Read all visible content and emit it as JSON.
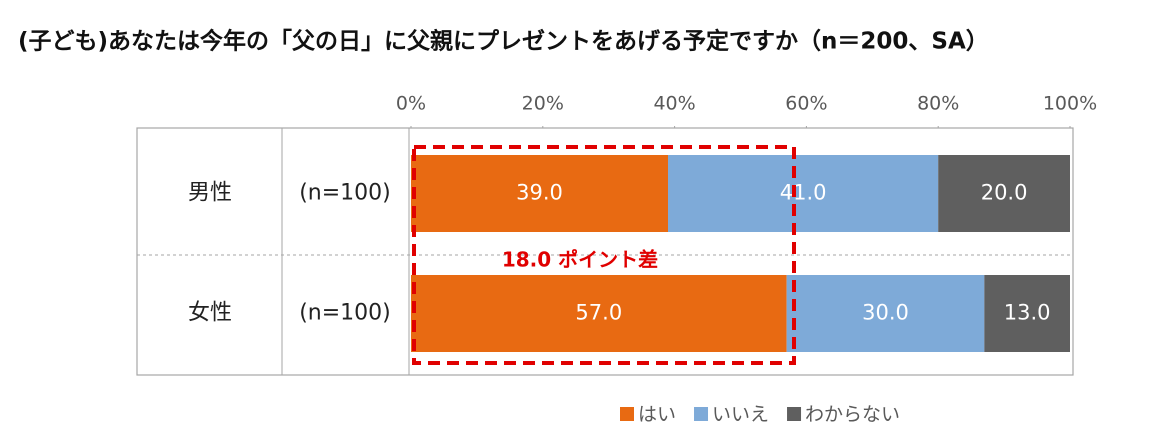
{
  "chart_data": {
    "type": "stacked-barh",
    "title": "(子ども)あなたは今年の「父の日」に父親にプレゼントをあげる予定ですか（n＝200、SA）",
    "categories": [
      "男性",
      "女性"
    ],
    "sample_sizes": [
      "(n=100)",
      "(n=100)"
    ],
    "series": [
      {
        "name": "はい",
        "color": "#e86a12",
        "values": [
          39.0,
          57.0
        ],
        "value_labels": [
          "39.0",
          "57.0"
        ]
      },
      {
        "name": "いいえ",
        "color": "#7eaad8",
        "values": [
          41.0,
          30.0
        ],
        "value_labels": [
          "41.0",
          "30.0"
        ]
      },
      {
        "name": "わからない",
        "color": "#5f5f5f",
        "values": [
          20.0,
          13.0
        ],
        "value_labels": [
          "20.0",
          "13.0"
        ]
      }
    ],
    "xlim": [
      0,
      100
    ],
    "xticks": [
      {
        "value": 0,
        "label": "0%"
      },
      {
        "value": 20,
        "label": "20%"
      },
      {
        "value": 40,
        "label": "40%"
      },
      {
        "value": 60,
        "label": "60%"
      },
      {
        "value": 80,
        "label": "80%"
      },
      {
        "value": 100,
        "label": "100%"
      }
    ],
    "annotation": "18.0 ポイント差",
    "annotation_color": "#e00000",
    "legend": "bottom"
  }
}
